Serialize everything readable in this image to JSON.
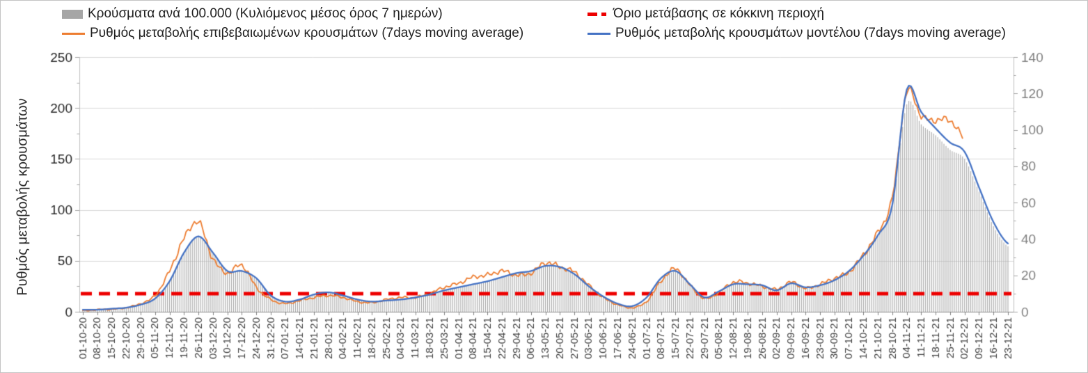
{
  "figure": {
    "background": "#ffffff",
    "border_color": "#c3c3c3"
  },
  "chart_data": {
    "type": "combo",
    "title": "",
    "x_labels": [
      "01-10-20",
      "08-10-20",
      "15-10-20",
      "22-10-20",
      "29-10-20",
      "05-11-20",
      "12-11-20",
      "19-11-20",
      "26-11-20",
      "03-12-20",
      "10-12-20",
      "17-12-20",
      "24-12-20",
      "31-12-20",
      "07-01-21",
      "14-01-21",
      "21-01-21",
      "28-01-21",
      "04-02-21",
      "11-02-21",
      "18-02-21",
      "25-02-21",
      "04-03-21",
      "11-03-21",
      "18-03-21",
      "25-03-21",
      "01-04-21",
      "08-04-21",
      "15-04-21",
      "22-04-21",
      "29-04-21",
      "06-05-21",
      "13-05-21",
      "20-05-21",
      "27-05-21",
      "03-06-21",
      "10-06-21",
      "17-06-21",
      "24-06-21",
      "01-07-21",
      "08-07-21",
      "15-07-21",
      "22-07-21",
      "29-07-21",
      "05-08-21",
      "12-08-21",
      "19-08-21",
      "26-08-21",
      "02-09-21",
      "09-09-21",
      "16-09-21",
      "23-09-21",
      "30-09-21",
      "07-10-21",
      "14-10-21",
      "21-10-21",
      "28-10-21",
      "04-11-21",
      "11-11-21",
      "18-11-21",
      "25-11-21",
      "02-12-21",
      "09-12-21",
      "16-12-21",
      "23-12-21"
    ],
    "x_tick_interval_days": 7,
    "left_axis": {
      "label": "Ρυθμός μεταβολής κρουσμάτων",
      "min": 0,
      "max": 250,
      "tick_step": 50,
      "minor_tick_step": 25,
      "tick_color": "#262626"
    },
    "right_axis": {
      "label": "",
      "min": 0,
      "max": 140,
      "tick_step": 20,
      "minor_tick_step": 10,
      "tick_color": "#7f7f7f"
    },
    "grid": {
      "show": true,
      "color": "#d9d9d9"
    },
    "series": [
      {
        "name": "Κρούσματα ανά 100.000 (Κυλιόμενος μέσος όρος 7 ημερών)",
        "type": "bar",
        "axis": "right",
        "color": "#a8a8a8",
        "legend_swatch": "#a6a6a6",
        "weekly_values": [
          1,
          1.2,
          1.5,
          2.2,
          4,
          7.5,
          17,
          33,
          41,
          32,
          22,
          23,
          18,
          9,
          5.5,
          6.5,
          9.5,
          10.5,
          9,
          6.5,
          5.5,
          6,
          7,
          8,
          9.5,
          11.5,
          13.5,
          15,
          17,
          19,
          21,
          22,
          25,
          24.5,
          20.5,
          14,
          8.5,
          4.5,
          3,
          6,
          17,
          22,
          15.5,
          8,
          10,
          15,
          15,
          14.5,
          11.5,
          15.5,
          13,
          14.5,
          17,
          22,
          30,
          42,
          58,
          114,
          103,
          97,
          89,
          84,
          66,
          47,
          36
        ]
      },
      {
        "name": "Όριο μετάβασης σε κόκκινη περιοχή",
        "type": "threshold",
        "axis": "right",
        "color": "#ed0000",
        "value": 10,
        "dash": [
          16,
          10
        ],
        "line_width": 5
      },
      {
        "name": "Ρυθμός μεταβολής επιβεβαιωμένων κρουσμάτων (7days moving average)",
        "type": "line",
        "axis": "left",
        "color": "#ED7D31",
        "line_width": 1.8,
        "jagged": true,
        "weekly_values": [
          1,
          2,
          2.5,
          4,
          8,
          16,
          40,
          72,
          88,
          52,
          38,
          46,
          24,
          12,
          8,
          11,
          14,
          16,
          14,
          10,
          9,
          12,
          14,
          14,
          18,
          24,
          28,
          34,
          36,
          40,
          36,
          38,
          48,
          44,
          39,
          26,
          14,
          7,
          4,
          10,
          30,
          42,
          26,
          13,
          19,
          29,
          28,
          25,
          22,
          29,
          23,
          27,
          33,
          39,
          56,
          78,
          112,
          215,
          192,
          188,
          188,
          170,
          null,
          null,
          null
        ]
      },
      {
        "name": "Ρυθμός μεταβολής κρουσμάτων μοντέλου (7days moving average)",
        "type": "line",
        "axis": "left",
        "color": "#4472C4",
        "line_width": 2.3,
        "jagged": false,
        "weekly_values": [
          2,
          2,
          3,
          4,
          7,
          13,
          30,
          58,
          74,
          58,
          40,
          40,
          33,
          16,
          10,
          12,
          17,
          19,
          16,
          12,
          10,
          11,
          12,
          14,
          17,
          21,
          24,
          27,
          30,
          34,
          38,
          40,
          45,
          44,
          37,
          25,
          15,
          8,
          5.5,
          14,
          33,
          40,
          27,
          14,
          20,
          27,
          27,
          26,
          21,
          28,
          24,
          26,
          31,
          40,
          55,
          75,
          105,
          218,
          196,
          180,
          166,
          157,
          122,
          88,
          67
        ]
      }
    ]
  }
}
